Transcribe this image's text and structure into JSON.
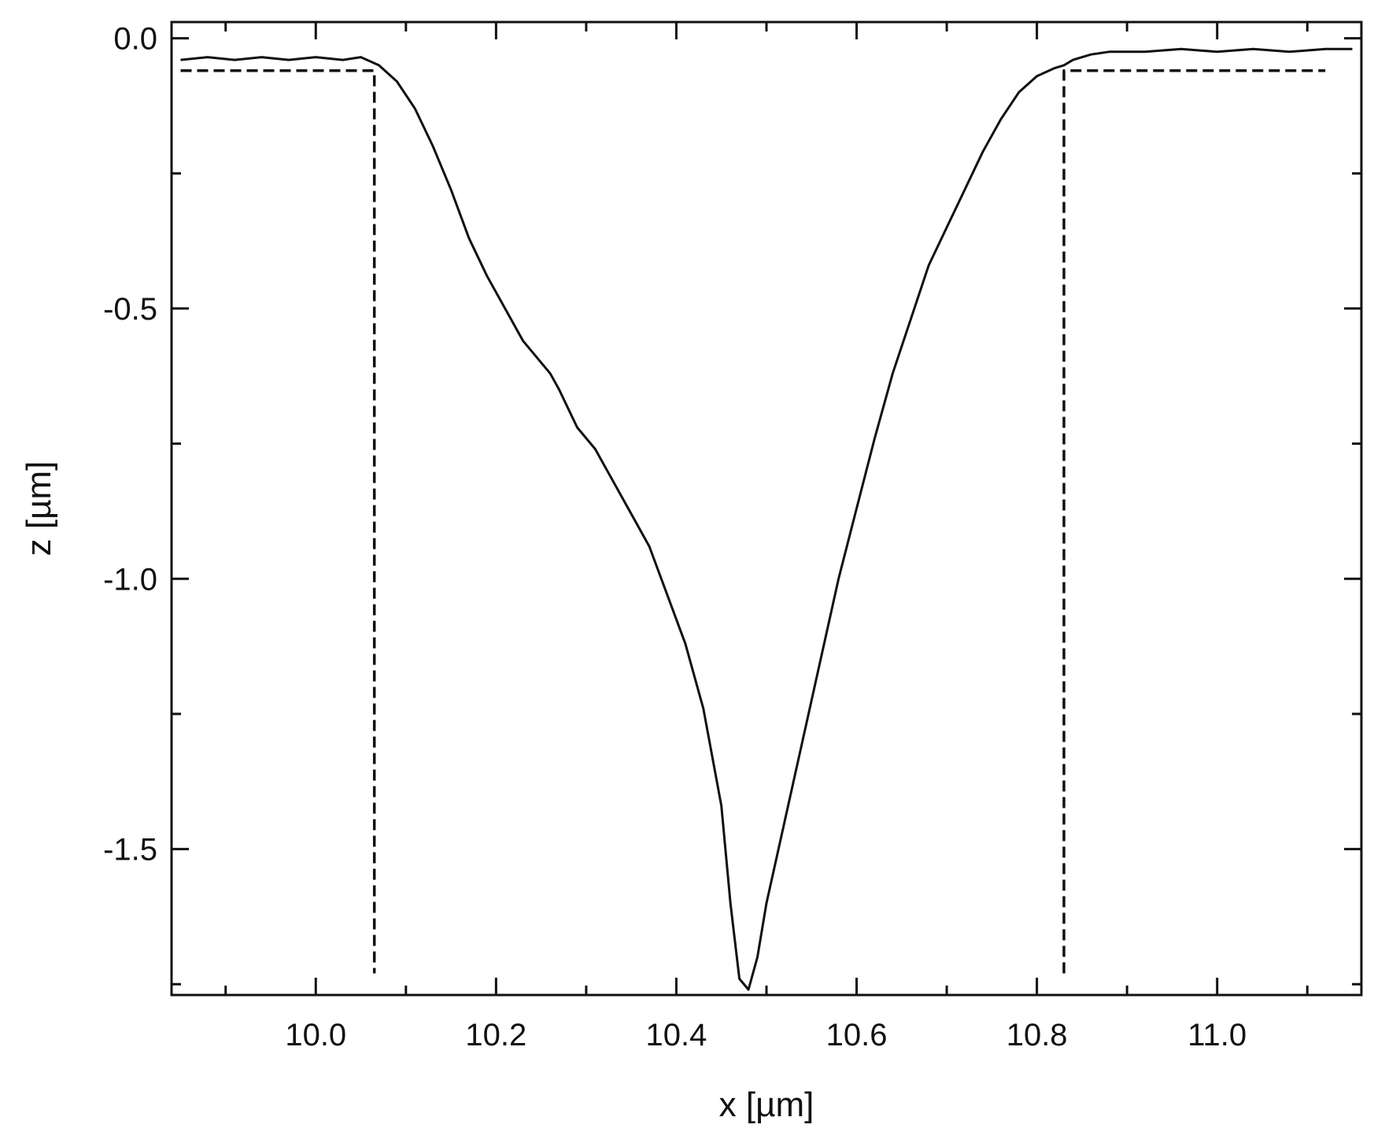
{
  "chart_data": {
    "type": "line",
    "title": "",
    "xlabel": "x [µm]",
    "ylabel": "z [µm]",
    "xlim": [
      9.84,
      11.16
    ],
    "ylim": [
      -1.77,
      0.03
    ],
    "x_ticks": [
      10.0,
      10.2,
      10.4,
      10.6,
      10.8,
      11.0
    ],
    "x_tick_labels": [
      "10.0",
      "10.2",
      "10.4",
      "10.6",
      "10.8",
      "11.0"
    ],
    "y_ticks": [
      0.0,
      -0.5,
      -1.0,
      -1.5
    ],
    "y_tick_labels": [
      "0.0",
      "-0.5",
      "-1.0",
      "-1.5"
    ],
    "grid": false,
    "legend": "none",
    "series": [
      {
        "style": "solid",
        "color": "#111111",
        "x": [
          9.85,
          9.88,
          9.91,
          9.94,
          9.97,
          10.0,
          10.03,
          10.05,
          10.07,
          10.09,
          10.11,
          10.13,
          10.15,
          10.17,
          10.19,
          10.21,
          10.23,
          10.25,
          10.26,
          10.27,
          10.29,
          10.31,
          10.33,
          10.35,
          10.37,
          10.39,
          10.41,
          10.43,
          10.45,
          10.46,
          10.47,
          10.48,
          10.49,
          10.5,
          10.52,
          10.54,
          10.56,
          10.58,
          10.6,
          10.62,
          10.64,
          10.66,
          10.68,
          10.7,
          10.72,
          10.74,
          10.76,
          10.78,
          10.8,
          10.82,
          10.83,
          10.84,
          10.86,
          10.88,
          10.92,
          10.96,
          11.0,
          11.04,
          11.08,
          11.12,
          11.15
        ],
        "y": [
          -0.04,
          -0.035,
          -0.04,
          -0.035,
          -0.04,
          -0.035,
          -0.04,
          -0.035,
          -0.05,
          -0.08,
          -0.13,
          -0.2,
          -0.28,
          -0.37,
          -0.44,
          -0.5,
          -0.56,
          -0.6,
          -0.62,
          -0.65,
          -0.72,
          -0.76,
          -0.82,
          -0.88,
          -0.94,
          -1.03,
          -1.12,
          -1.24,
          -1.42,
          -1.6,
          -1.74,
          -1.76,
          -1.7,
          -1.6,
          -1.45,
          -1.3,
          -1.15,
          -1.0,
          -0.87,
          -0.74,
          -0.62,
          -0.52,
          -0.42,
          -0.35,
          -0.28,
          -0.21,
          -0.15,
          -0.1,
          -0.07,
          -0.055,
          -0.05,
          -0.04,
          -0.03,
          -0.025,
          -0.025,
          -0.02,
          -0.025,
          -0.02,
          -0.025,
          -0.02,
          -0.02
        ]
      },
      {
        "style": "dashed",
        "color": "#111111",
        "x": [
          9.85,
          10.055,
          10.055,
          10.065,
          10.065
        ],
        "y": [
          -0.06,
          -0.06,
          -0.06,
          -0.06,
          -1.73
        ]
      },
      {
        "style": "dashed",
        "color": "#111111",
        "x": [
          10.83,
          10.83,
          10.835,
          10.835,
          10.835,
          11.12
        ],
        "y": [
          -1.73,
          -0.06,
          -0.06,
          -0.06,
          -0.06,
          -0.06
        ]
      }
    ]
  }
}
